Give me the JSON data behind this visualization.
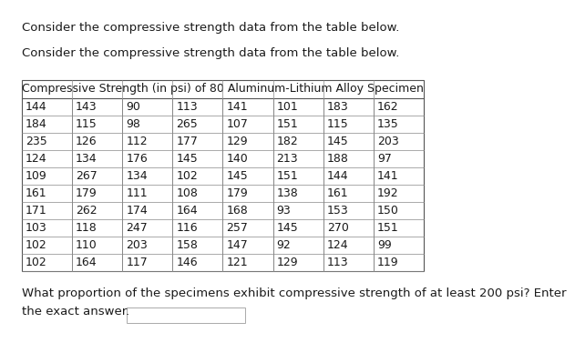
{
  "title_text1": "Consider the compressive strength data from the table below.",
  "title_text2": "Consider the compressive strength data from the table below.",
  "table_header": "Compressive Strength (in psi) of 80 Aluminum-Lithium Alloy Specimen",
  "table_data": [
    [
      144,
      143,
      90,
      113,
      141,
      101,
      183,
      162
    ],
    [
      184,
      115,
      98,
      265,
      107,
      151,
      115,
      135
    ],
    [
      235,
      126,
      112,
      177,
      129,
      182,
      145,
      203
    ],
    [
      124,
      134,
      176,
      145,
      140,
      213,
      188,
      97
    ],
    [
      109,
      267,
      134,
      102,
      145,
      151,
      144,
      141
    ],
    [
      161,
      179,
      111,
      108,
      179,
      138,
      161,
      192
    ],
    [
      171,
      262,
      174,
      164,
      168,
      93,
      153,
      150
    ],
    [
      103,
      118,
      247,
      116,
      257,
      145,
      270,
      151
    ],
    [
      102,
      110,
      203,
      158,
      147,
      92,
      124,
      99
    ],
    [
      102,
      164,
      117,
      146,
      121,
      129,
      113,
      119
    ]
  ],
  "question_line1": "What proportion of the specimens exhibit compressive strength of at least 200 psi? Enter",
  "question_line2": "the exact answer.",
  "bg_color": "#ffffff",
  "text_color": "#1a1a1a",
  "border_color": "#888888",
  "font_size_text": 9.5,
  "font_size_table_header": 9.0,
  "font_size_table_data": 9.0
}
